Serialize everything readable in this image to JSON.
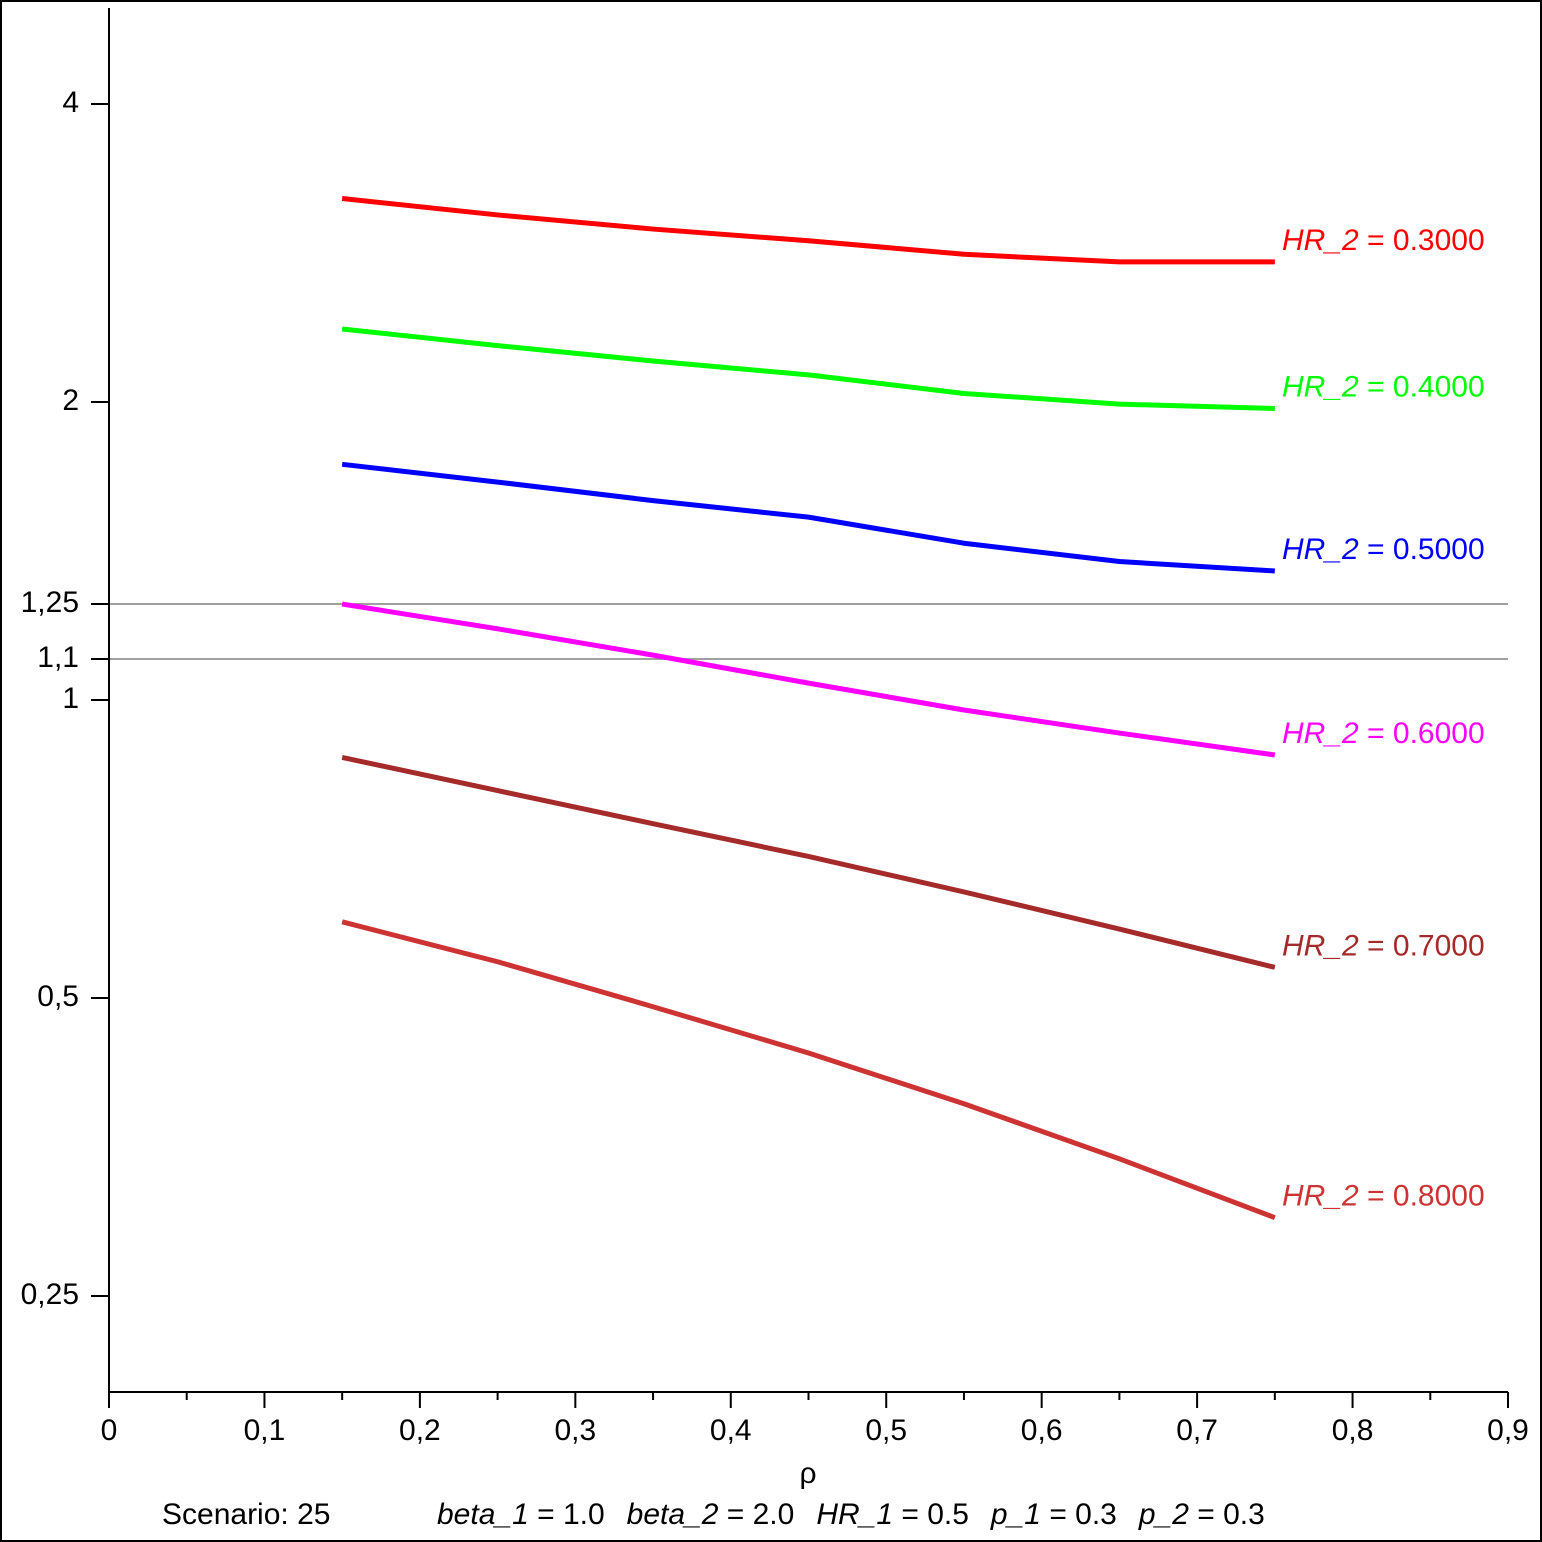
{
  "chart_data": {
    "type": "line",
    "x_label": "ρ",
    "caption": "Scenario: 25",
    "parameters": [
      "beta_1 = 1.0",
      "beta_2 = 2.0",
      "HR_1 = 0.5",
      "p_1 = 0.3",
      "p_2 = 0.3"
    ],
    "x": [
      0.15,
      0.25,
      0.35,
      0.45,
      0.55,
      0.65,
      0.75
    ],
    "xlim": [
      0,
      0.9
    ],
    "xticks": [
      0,
      {
        "value": 0.1,
        "label": "0,1"
      },
      {
        "value": 0.2,
        "label": "0,2"
      },
      {
        "value": 0.3,
        "label": "0,3"
      },
      {
        "value": 0.4,
        "label": "0,4"
      },
      {
        "value": 0.5,
        "label": "0,5"
      },
      {
        "value": 0.6,
        "label": "0,6"
      },
      {
        "value": 0.7,
        "label": "0,7"
      },
      {
        "value": 0.8,
        "label": "0,8"
      },
      {
        "value": 0.9,
        "label": "0,9"
      }
    ],
    "ylim": [
      0.2,
      5
    ],
    "y_scale": "log",
    "yticks": [
      {
        "value": 0.25,
        "label": "0,25"
      },
      {
        "value": 0.5,
        "label": "0,5"
      },
      1,
      {
        "value": 1.1,
        "label": "1,1"
      },
      {
        "value": 1.25,
        "label": "1,25"
      },
      2,
      4
    ],
    "hlines": [
      1.1,
      1.25
    ],
    "hline_color": "#a0a0a0",
    "series": [
      {
        "name": "HR_2 = 0.3000",
        "color": "#ff0000",
        "values": [
          3.21,
          3.09,
          2.99,
          2.91,
          2.82,
          2.77,
          2.77
        ]
      },
      {
        "name": "HR_2 = 0.4000",
        "color": "#00ff00",
        "values": [
          2.37,
          2.28,
          2.2,
          2.13,
          2.04,
          1.99,
          1.97
        ]
      },
      {
        "name": "HR_2 = 0.5000",
        "color": "#0000ff",
        "values": [
          1.73,
          1.66,
          1.59,
          1.53,
          1.44,
          1.38,
          1.35
        ]
      },
      {
        "name": "HR_2 = 0.6000",
        "color": "#ff00ff",
        "values": [
          1.25,
          1.18,
          1.11,
          1.04,
          0.977,
          0.926,
          0.88
        ]
      },
      {
        "name": "HR_2 = 0.7000",
        "color": "#a52a2a",
        "values": [
          0.875,
          0.81,
          0.75,
          0.695,
          0.64,
          0.587,
          0.537
        ]
      },
      {
        "name": "HR_2 = 0.8000",
        "color": "#cd3333",
        "values": [
          0.597,
          0.544,
          0.49,
          0.44,
          0.391,
          0.344,
          0.3
        ]
      }
    ]
  }
}
